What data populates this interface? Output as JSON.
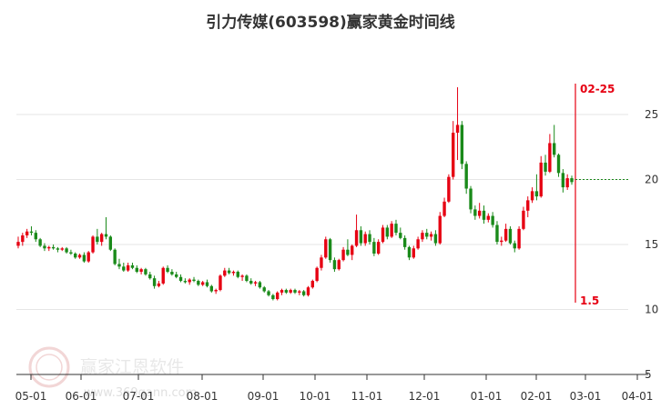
{
  "chart_data": {
    "type": "candlestick",
    "title": "引力传媒(603598)赢家黄金时间线",
    "x_tick_labels": [
      "05-01",
      "06-01",
      "07-01",
      "08-01",
      "09-01",
      "10-01",
      "11-01",
      "12-01",
      "01-01",
      "02-01",
      "03-01",
      "04-01"
    ],
    "y_ticks": [
      5,
      10,
      15,
      20,
      25
    ],
    "ylim": [
      5,
      28
    ],
    "colors": {
      "up": "#e60012",
      "down": "#1a8a1a",
      "marker": "#e60012",
      "level": "#1a8a1a",
      "grid": "#e6e6e6"
    },
    "series": [
      {
        "values": [
          [
            14.9,
            15.6,
            14.7,
            15.2
          ],
          [
            15.2,
            15.9,
            14.9,
            15.7
          ],
          [
            15.7,
            16.2,
            15.5,
            16.0
          ],
          [
            16.0,
            16.4,
            15.7,
            15.9
          ],
          [
            15.9,
            16.1,
            15.2,
            15.4
          ],
          [
            15.4,
            15.5,
            14.8,
            14.9
          ],
          [
            14.9,
            15.1,
            14.5,
            14.7
          ],
          [
            14.7,
            14.9,
            14.5,
            14.8
          ],
          [
            14.8,
            15.0,
            14.6,
            14.7
          ],
          [
            14.7,
            14.8,
            14.4,
            14.6
          ],
          [
            14.6,
            14.8,
            14.5,
            14.7
          ],
          [
            14.7,
            14.8,
            14.3,
            14.4
          ],
          [
            14.4,
            14.6,
            14.2,
            14.3
          ],
          [
            14.3,
            14.4,
            13.9,
            14.0
          ],
          [
            14.0,
            14.3,
            13.9,
            14.2
          ],
          [
            14.2,
            14.4,
            13.6,
            13.7
          ],
          [
            13.7,
            14.5,
            13.6,
            14.4
          ],
          [
            14.4,
            15.7,
            14.3,
            15.6
          ],
          [
            15.6,
            16.2,
            15.0,
            15.2
          ],
          [
            15.2,
            15.9,
            14.9,
            15.8
          ],
          [
            15.8,
            17.1,
            15.4,
            15.6
          ],
          [
            15.6,
            15.7,
            14.5,
            14.6
          ],
          [
            14.6,
            14.7,
            13.4,
            13.5
          ],
          [
            13.5,
            13.9,
            13.1,
            13.3
          ],
          [
            13.3,
            13.6,
            12.9,
            13.0
          ],
          [
            13.0,
            13.6,
            12.9,
            13.4
          ],
          [
            13.4,
            13.6,
            13.1,
            13.2
          ],
          [
            13.2,
            13.4,
            12.8,
            12.9
          ],
          [
            12.9,
            13.2,
            12.7,
            13.1
          ],
          [
            13.1,
            13.2,
            12.6,
            12.7
          ],
          [
            12.7,
            12.9,
            12.3,
            12.4
          ],
          [
            12.4,
            12.6,
            11.6,
            11.8
          ],
          [
            11.8,
            12.2,
            11.7,
            12.0
          ],
          [
            12.0,
            13.3,
            11.9,
            13.2
          ],
          [
            13.2,
            13.4,
            12.8,
            12.9
          ],
          [
            12.9,
            13.1,
            12.6,
            12.7
          ],
          [
            12.7,
            12.9,
            12.4,
            12.5
          ],
          [
            12.5,
            12.7,
            12.1,
            12.2
          ],
          [
            12.2,
            12.4,
            12.0,
            12.1
          ],
          [
            12.1,
            12.4,
            11.9,
            12.3
          ],
          [
            12.3,
            12.5,
            12.1,
            12.2
          ],
          [
            12.2,
            12.3,
            11.8,
            11.9
          ],
          [
            11.9,
            12.2,
            11.8,
            12.1
          ],
          [
            12.1,
            12.3,
            11.7,
            11.8
          ],
          [
            11.8,
            11.9,
            11.3,
            11.4
          ],
          [
            11.4,
            11.6,
            11.2,
            11.5
          ],
          [
            11.5,
            12.7,
            11.4,
            12.6
          ],
          [
            12.6,
            13.2,
            12.5,
            13.0
          ],
          [
            13.0,
            13.2,
            12.7,
            12.8
          ],
          [
            12.8,
            13.0,
            12.6,
            12.9
          ],
          [
            12.9,
            13.0,
            12.4,
            12.5
          ],
          [
            12.5,
            12.7,
            12.2,
            12.6
          ],
          [
            12.6,
            12.7,
            12.1,
            12.2
          ],
          [
            12.2,
            12.4,
            11.9,
            12.0
          ],
          [
            12.0,
            12.2,
            11.8,
            12.1
          ],
          [
            12.1,
            12.2,
            11.6,
            11.7
          ],
          [
            11.7,
            11.8,
            11.3,
            11.4
          ],
          [
            11.4,
            11.5,
            11.0,
            11.1
          ],
          [
            11.1,
            11.2,
            10.7,
            10.8
          ],
          [
            10.8,
            11.4,
            10.7,
            11.3
          ],
          [
            11.3,
            11.6,
            11.1,
            11.5
          ],
          [
            11.5,
            11.6,
            11.2,
            11.3
          ],
          [
            11.3,
            11.6,
            11.2,
            11.5
          ],
          [
            11.5,
            11.6,
            11.2,
            11.3
          ],
          [
            11.3,
            11.5,
            11.1,
            11.4
          ],
          [
            11.4,
            11.5,
            11.0,
            11.1
          ],
          [
            11.1,
            11.8,
            11.0,
            11.7
          ],
          [
            11.7,
            12.3,
            11.6,
            12.2
          ],
          [
            12.2,
            13.3,
            12.1,
            13.2
          ],
          [
            13.2,
            14.2,
            13.0,
            14.0
          ],
          [
            14.0,
            15.6,
            13.9,
            15.4
          ],
          [
            15.4,
            15.5,
            13.6,
            13.8
          ],
          [
            13.8,
            14.0,
            12.9,
            13.1
          ],
          [
            13.1,
            13.9,
            13.0,
            13.8
          ],
          [
            13.8,
            14.8,
            13.7,
            14.6
          ],
          [
            14.6,
            15.4,
            14.1,
            14.2
          ],
          [
            14.2,
            15.0,
            13.8,
            14.9
          ],
          [
            14.9,
            17.3,
            14.8,
            16.1
          ],
          [
            16.1,
            16.4,
            14.9,
            15.1
          ],
          [
            15.1,
            16.0,
            14.9,
            15.8
          ],
          [
            15.8,
            16.1,
            15.0,
            15.2
          ],
          [
            15.2,
            15.5,
            14.1,
            14.3
          ],
          [
            14.3,
            15.4,
            14.2,
            15.2
          ],
          [
            15.2,
            16.5,
            15.1,
            16.3
          ],
          [
            16.3,
            16.5,
            15.4,
            15.6
          ],
          [
            15.6,
            16.8,
            15.5,
            16.6
          ],
          [
            16.6,
            16.9,
            15.7,
            15.9
          ],
          [
            15.9,
            16.3,
            15.4,
            15.5
          ],
          [
            15.5,
            15.7,
            14.6,
            14.8
          ],
          [
            14.8,
            14.9,
            13.8,
            14.0
          ],
          [
            14.0,
            14.9,
            13.9,
            14.7
          ],
          [
            14.7,
            15.6,
            14.6,
            15.4
          ],
          [
            15.4,
            16.1,
            15.2,
            15.9
          ],
          [
            15.9,
            16.2,
            15.4,
            15.6
          ],
          [
            15.6,
            16.0,
            15.3,
            15.8
          ],
          [
            15.8,
            16.1,
            14.9,
            15.1
          ],
          [
            15.1,
            17.5,
            15.0,
            17.2
          ],
          [
            17.2,
            18.6,
            17.1,
            18.3
          ],
          [
            18.3,
            20.4,
            18.2,
            20.2
          ],
          [
            20.2,
            24.5,
            20.0,
            23.6
          ],
          [
            23.6,
            27.1,
            21.5,
            24.2
          ],
          [
            24.2,
            24.5,
            20.8,
            21.2
          ],
          [
            21.2,
            21.4,
            18.9,
            19.3
          ],
          [
            19.3,
            19.5,
            17.4,
            17.7
          ],
          [
            17.7,
            18.0,
            16.9,
            17.2
          ],
          [
            17.2,
            18.2,
            17.0,
            17.6
          ],
          [
            17.6,
            18.0,
            16.6,
            16.9
          ],
          [
            16.9,
            17.4,
            16.7,
            17.2
          ],
          [
            17.2,
            17.5,
            16.3,
            16.5
          ],
          [
            16.5,
            16.8,
            15.0,
            15.2
          ],
          [
            15.2,
            15.6,
            14.9,
            15.3
          ],
          [
            15.3,
            16.6,
            15.2,
            16.2
          ],
          [
            16.2,
            16.4,
            15.0,
            15.1
          ],
          [
            15.1,
            15.3,
            14.4,
            14.7
          ],
          [
            14.7,
            16.4,
            14.6,
            16.2
          ],
          [
            16.2,
            17.9,
            16.1,
            17.6
          ],
          [
            17.6,
            18.7,
            17.1,
            18.4
          ],
          [
            18.4,
            19.4,
            18.2,
            19.1
          ],
          [
            19.1,
            20.4,
            18.4,
            18.7
          ],
          [
            18.7,
            21.8,
            18.6,
            21.3
          ],
          [
            21.3,
            21.9,
            20.3,
            20.6
          ],
          [
            20.6,
            23.5,
            20.5,
            22.8
          ],
          [
            22.8,
            24.2,
            21.7,
            21.9
          ],
          [
            21.9,
            22.0,
            20.2,
            20.5
          ],
          [
            20.5,
            20.8,
            19.0,
            19.4
          ],
          [
            19.4,
            20.4,
            19.2,
            20.1
          ],
          [
            20.1,
            20.3,
            19.6,
            19.8
          ]
        ]
      }
    ],
    "marker": {
      "date_label": "02-25",
      "low_label": "1.5",
      "level": 20
    }
  }
}
